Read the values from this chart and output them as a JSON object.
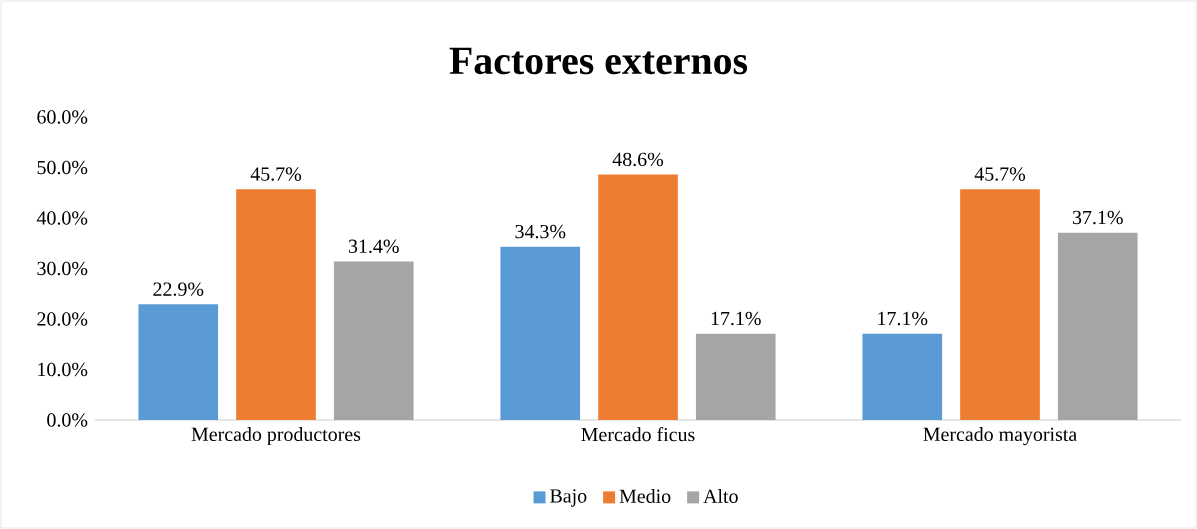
{
  "chart_data": {
    "type": "bar",
    "title": "Factores externos",
    "categories": [
      "Mercado productores",
      "Mercado ficus",
      "Mercado mayorista"
    ],
    "series": [
      {
        "name": "Bajo",
        "color": "#5b9bd5",
        "values": [
          22.9,
          34.3,
          17.1
        ],
        "value_labels": [
          "22.9%",
          "34.3%",
          "17.1%"
        ]
      },
      {
        "name": "Medio",
        "color": "#ed7d31",
        "values": [
          45.7,
          48.6,
          45.7
        ],
        "value_labels": [
          "45.7%",
          "48.6%",
          "45.7%"
        ]
      },
      {
        "name": "Alto",
        "color": "#a5a5a5",
        "values": [
          31.4,
          17.1,
          37.1
        ],
        "value_labels": [
          "31.4%",
          "17.1%",
          "37.1%"
        ]
      }
    ],
    "ylim": [
      0,
      60
    ],
    "yticks": [
      {
        "value": 0,
        "label": "0.0%"
      },
      {
        "value": 10,
        "label": "10.0%"
      },
      {
        "value": 20,
        "label": "20.0%"
      },
      {
        "value": 30,
        "label": "30.0%"
      },
      {
        "value": 40,
        "label": "40.0%"
      },
      {
        "value": 50,
        "label": "50.0%"
      },
      {
        "value": 60,
        "label": "60.0%"
      }
    ],
    "legend": "bottom"
  }
}
